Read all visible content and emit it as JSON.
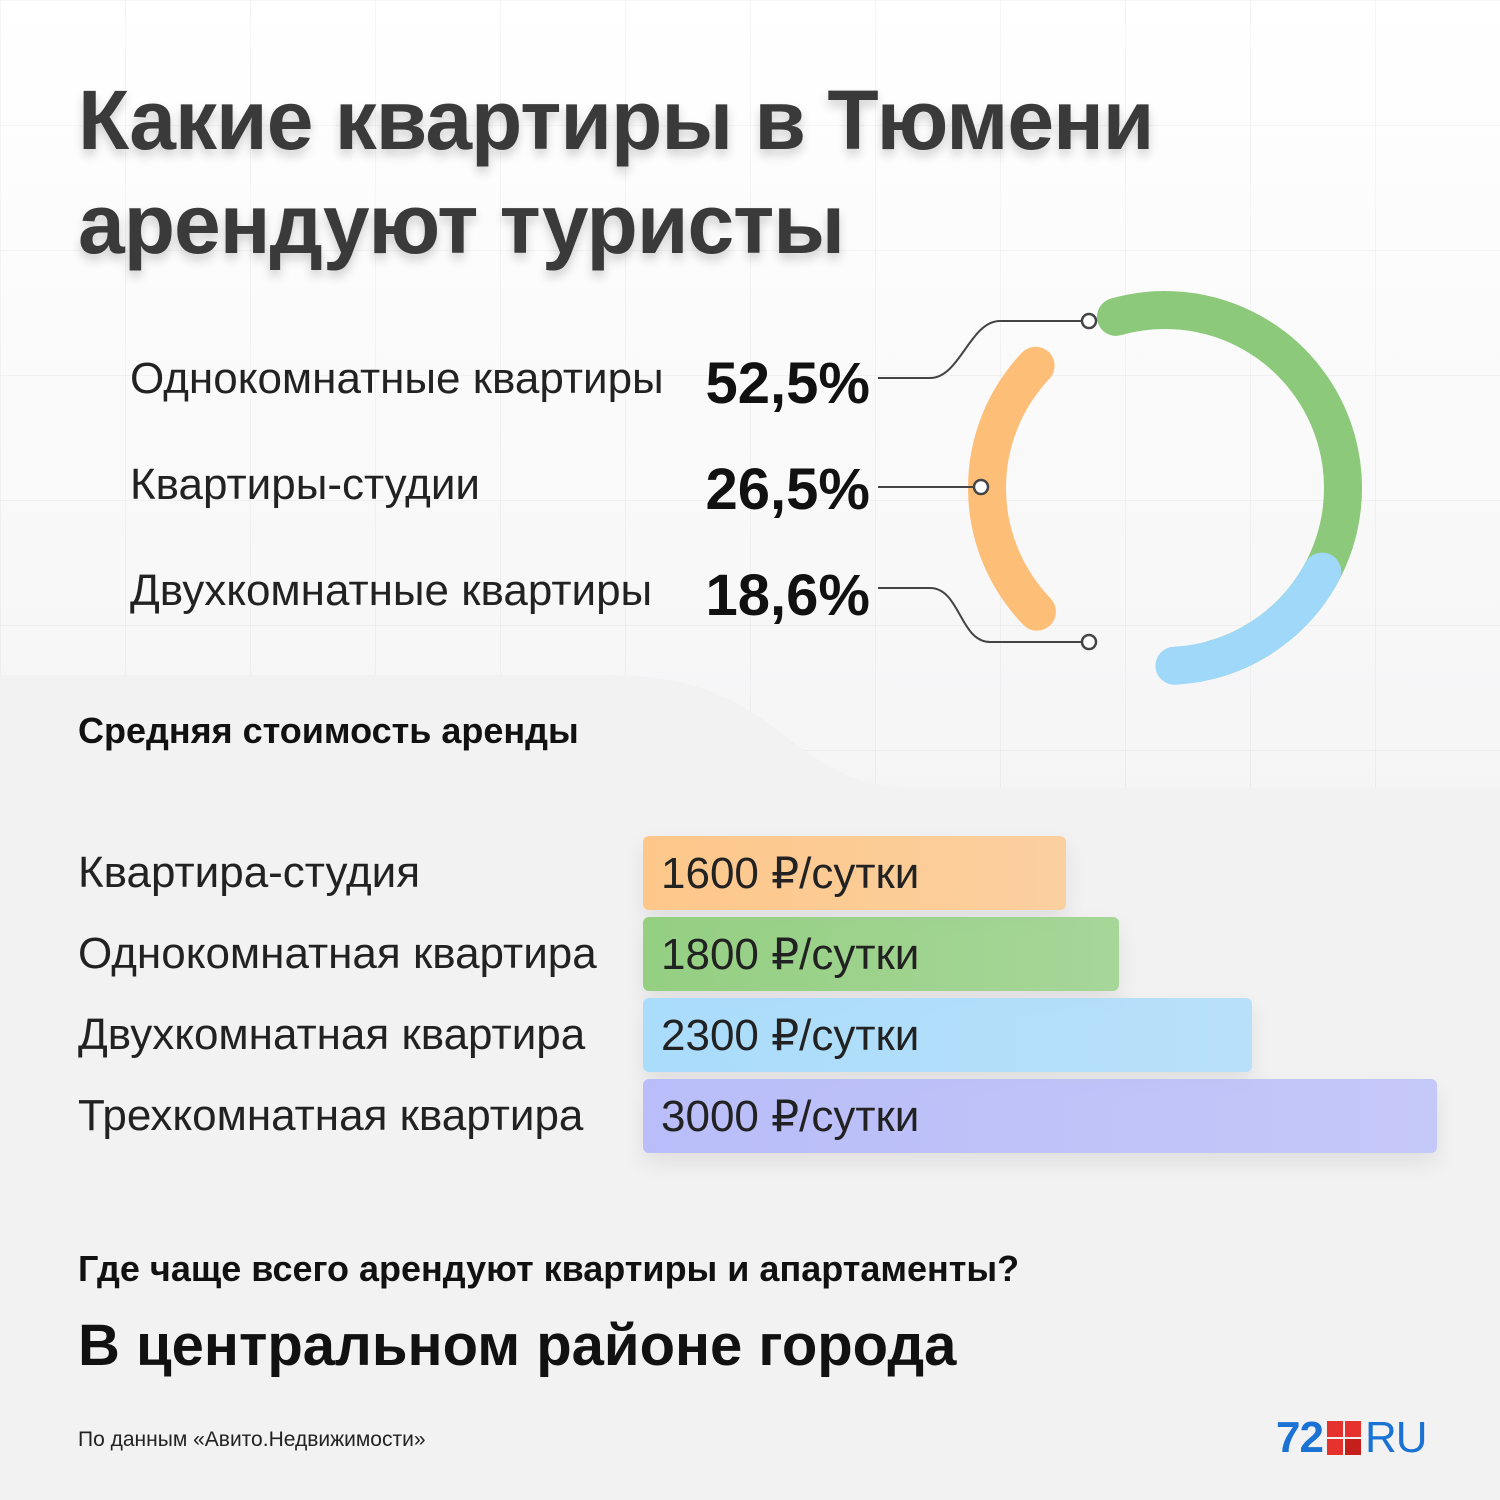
{
  "title": {
    "line1": "Какие квартиры в Тюмени",
    "line2": "арендуют туристы"
  },
  "share_chart": {
    "items": [
      {
        "label": "Однокомнатные квартиры",
        "value_text": "52,5%",
        "value": 52.5,
        "color": "#8cc97a"
      },
      {
        "label": "Квартиры-студии",
        "value_text": "26,5%",
        "value": 26.5,
        "color": "#fdbf78"
      },
      {
        "label": "Двухкомнатные квартиры",
        "value_text": "18,6%",
        "value": 18.6,
        "color": "#9fd8f8"
      }
    ]
  },
  "price_section": {
    "title": "Средняя стоимость аренды"
  },
  "chart_data": [
    {
      "type": "pie",
      "categories": [
        "Однокомнатные квартиры",
        "Квартиры-студии",
        "Двухкомнатные квартиры"
      ],
      "values": [
        52.5,
        26.5,
        18.6
      ],
      "labels": [
        "52,5%",
        "26,5%",
        "18,6%"
      ],
      "colors": [
        "#8cc97a",
        "#fdbf78",
        "#9fd8f8"
      ]
    },
    {
      "type": "bar",
      "orientation": "horizontal",
      "categories": [
        "Квартира-студия",
        "Однокомнатная квартира",
        "Двухкомнатная квартира",
        "Трехкомнатная квартира"
      ],
      "values": [
        1600,
        1800,
        2300,
        3000
      ],
      "labels": [
        "1600 ₽/сутки",
        "1800 ₽/сутки",
        "2300 ₽/сутки",
        "3000 ₽/сутки"
      ],
      "colors": [
        "#fdc78a",
        "#94cf82",
        "#aadcfb",
        "#b9bdf9"
      ],
      "title": "Средняя стоимость аренды"
    }
  ],
  "question": "Где чаще всего арендуют квартиры и апартаменты?",
  "answer": "В центральном районе города",
  "source": "По данным «Авито.Недвижимости»",
  "logo": {
    "number": "72",
    "suffix": "RU",
    "colors": {
      "blue": "#1a73d4",
      "red": "#e5322d"
    }
  }
}
